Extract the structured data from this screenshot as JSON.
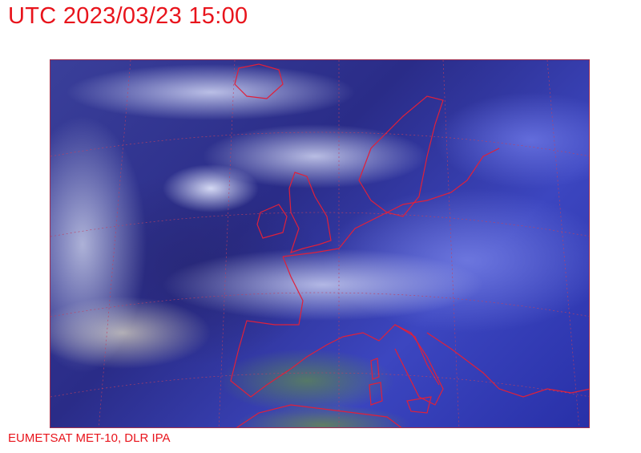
{
  "title": "UTC 2023/03/23 15:00",
  "credit": "EUMETSAT MET-10, DLR IPA",
  "map": {
    "type": "satellite-image",
    "region": "Europe and North Atlantic",
    "overlay_colors": {
      "coastlines": "#e0203a",
      "graticule": "#c04060"
    },
    "text_color": "#e8141c"
  }
}
